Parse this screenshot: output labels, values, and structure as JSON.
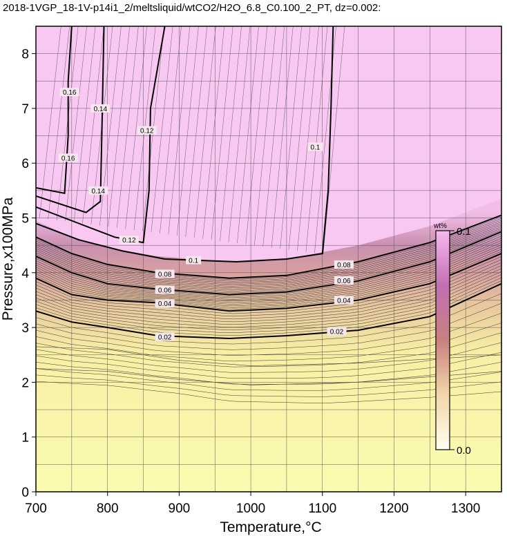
{
  "chart_data": {
    "type": "heatmap",
    "title": "2018-1VGP_18-1V-p14i1_2/meltsliquid/wtCO2/H2O_6.8_C0.100_2_PT, dz=0.002:",
    "xlabel": "Temperature,°C",
    "ylabel": "Pressure,x100MPa",
    "xlim": [
      700,
      1350
    ],
    "ylim": [
      0,
      8.5
    ],
    "x_ticks": [
      "700",
      "800",
      "900",
      "1000",
      "1100",
      "1200",
      "1300"
    ],
    "y_ticks": [
      "0",
      "1",
      "2",
      "3",
      "4",
      "5",
      "6",
      "7",
      "8"
    ],
    "grid": true,
    "colorbar": {
      "unit": "wt%",
      "max_label": "0.1",
      "min_label": "0.0",
      "range": [
        0.0,
        0.1
      ],
      "placement": "right-inside"
    },
    "contour_interval": 0.002,
    "contours": [
      {
        "label": "0.02",
        "points": [
          [
            700,
            3.3
          ],
          [
            750,
            3.1
          ],
          [
            800,
            3.0
          ],
          [
            870,
            2.85
          ],
          [
            970,
            2.8
          ],
          [
            1050,
            2.85
          ],
          [
            1150,
            2.95
          ],
          [
            1250,
            3.2
          ],
          [
            1350,
            3.8
          ]
        ],
        "label_at": [
          [
            880,
            2.83
          ],
          [
            1120,
            2.93
          ]
        ]
      },
      {
        "label": "0.04",
        "points": [
          [
            700,
            3.9
          ],
          [
            750,
            3.6
          ],
          [
            800,
            3.5
          ],
          [
            870,
            3.45
          ],
          [
            970,
            3.3
          ],
          [
            1050,
            3.35
          ],
          [
            1150,
            3.5
          ],
          [
            1250,
            3.8
          ],
          [
            1350,
            4.35
          ]
        ],
        "label_at": [
          [
            880,
            3.44
          ],
          [
            1130,
            3.5
          ]
        ]
      },
      {
        "label": "0.06",
        "points": [
          [
            700,
            4.3
          ],
          [
            750,
            4.0
          ],
          [
            800,
            3.8
          ],
          [
            870,
            3.7
          ],
          [
            970,
            3.6
          ],
          [
            1050,
            3.65
          ],
          [
            1150,
            3.85
          ],
          [
            1250,
            4.2
          ],
          [
            1350,
            4.75
          ]
        ],
        "label_at": [
          [
            880,
            3.69
          ],
          [
            1130,
            3.86
          ]
        ]
      },
      {
        "label": "0.08",
        "points": [
          [
            700,
            4.65
          ],
          [
            750,
            4.35
          ],
          [
            800,
            4.15
          ],
          [
            870,
            4.0
          ],
          [
            970,
            3.9
          ],
          [
            1050,
            3.95
          ],
          [
            1150,
            4.2
          ],
          [
            1250,
            4.55
          ],
          [
            1350,
            5.05
          ]
        ],
        "label_at": [
          [
            880,
            3.98
          ],
          [
            1130,
            4.15
          ]
        ]
      },
      {
        "label": "0.1",
        "points": [
          [
            700,
            4.9
          ],
          [
            760,
            4.6
          ],
          [
            820,
            4.4
          ],
          [
            880,
            4.25
          ],
          [
            980,
            4.2
          ],
          [
            1050,
            4.25
          ],
          [
            1100,
            4.35
          ],
          [
            1108,
            5.5
          ],
          [
            1112,
            7
          ],
          [
            1115,
            8.5
          ]
        ],
        "label_at": [
          [
            1090,
            6.3
          ],
          [
            920,
            4.23
          ]
        ]
      },
      {
        "label": "0.12",
        "points": [
          [
            700,
            5.2
          ],
          [
            760,
            4.9
          ],
          [
            810,
            4.65
          ],
          [
            850,
            4.55
          ],
          [
            858,
            5.5
          ],
          [
            860,
            7.0
          ],
          [
            880,
            8.5
          ]
        ],
        "label_at": [
          [
            830,
            4.6
          ],
          [
            855,
            6.6
          ]
        ]
      },
      {
        "label": "0.14",
        "points": [
          [
            700,
            5.4
          ],
          [
            770,
            5.1
          ],
          [
            790,
            5.3
          ],
          [
            792,
            6.5
          ],
          [
            795,
            8.5
          ]
        ],
        "label_at": [
          [
            787,
            5.5
          ],
          [
            790,
            7.0
          ]
        ]
      },
      {
        "label": "0.16",
        "points": [
          [
            700,
            5.55
          ],
          [
            740,
            5.45
          ],
          [
            745,
            6.5
          ],
          [
            745,
            7.5
          ],
          [
            750,
            8.5
          ]
        ],
        "label_at": [
          [
            745,
            6.1
          ],
          [
            747,
            7.3
          ]
        ]
      }
    ]
  }
}
